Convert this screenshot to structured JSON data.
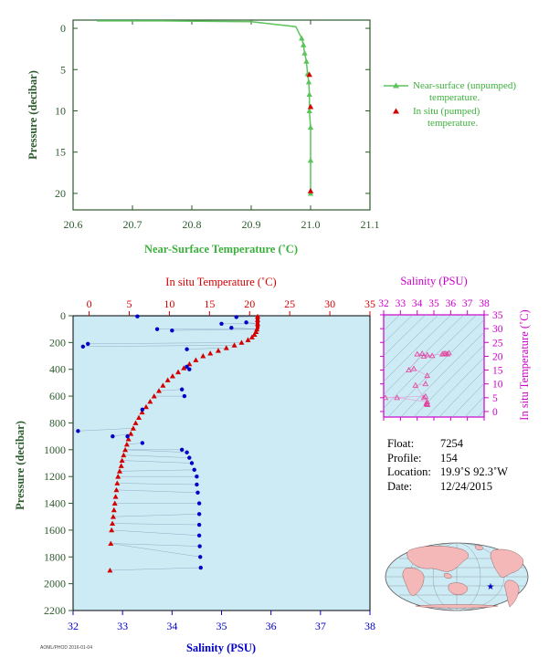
{
  "colors": {
    "surface": "#5bc45b",
    "insitu": "#d40000",
    "salinity": "#0000c8",
    "tsaxis": "#cc00cc",
    "axis_text": "#2d5a2d",
    "panel_bg": "#cdebf5",
    "land": "#f4b8b8",
    "ocean": "#cdebf5"
  },
  "chart_data": [
    {
      "type": "line",
      "xlabel": "Near-Surface Temperature (˚C)",
      "ylabel": "Pressure (decibar)",
      "xlim": [
        20.6,
        21.1
      ],
      "ylim": [
        22,
        -1
      ],
      "xticks": [
        "20.6",
        "20.7",
        "20.8",
        "20.9",
        "21.0",
        "21.1"
      ],
      "yticks": [
        "0",
        "5",
        "10",
        "15",
        "20"
      ],
      "legend_placement": "right",
      "series": [
        {
          "name": "Near-surface (unpumped) temperature.",
          "x": [
            20.64,
            20.75,
            20.9,
            20.975,
            20.98,
            20.985,
            20.988,
            20.99,
            20.993,
            20.995,
            20.997,
            20.998,
            20.998,
            21.0,
            21.0,
            21.0
          ],
          "y": [
            -0.9,
            -0.9,
            -0.8,
            -0.2,
            0.5,
            1.2,
            2.0,
            3.0,
            4.0,
            5.5,
            6.5,
            8.0,
            10.0,
            12.0,
            16.0,
            20.0
          ]
        },
        {
          "name": "In situ (pumped) temperature.",
          "x": [
            20.998,
            21.0,
            21.0
          ],
          "y": [
            5.6,
            9.5,
            19.7
          ]
        }
      ]
    },
    {
      "type": "scatter",
      "ylabel": "Pressure (decibar)",
      "top_axis_label": "In situ Temperature (˚C)",
      "bottom_axis_label": "Salinity (PSU)",
      "temperature_ticks": [
        "0",
        "5",
        "10",
        "15",
        "20",
        "25",
        "30",
        "35"
      ],
      "salinity_ticks": [
        "32",
        "33",
        "34",
        "35",
        "36",
        "37",
        "38"
      ],
      "pressure_ticks": [
        "0",
        "200",
        "400",
        "600",
        "800",
        "1000",
        "1200",
        "1400",
        "1600",
        "1800",
        "2000",
        "2200"
      ],
      "temperature_lim": [
        -2,
        35
      ],
      "salinity_lim": [
        32,
        38
      ],
      "pressure_lim": [
        2200,
        0
      ],
      "series": [
        {
          "name": "In situ Temperature (˚C)",
          "x": [
            21.0,
            21.0,
            21.0,
            20.9,
            20.8,
            20.6,
            20.3,
            19.8,
            19.0,
            18.1,
            17.1,
            16.1,
            15.1,
            14.2,
            13.3,
            12.5,
            11.8,
            11.1,
            10.4,
            9.8,
            9.2,
            8.7,
            8.1,
            7.6,
            7.1,
            6.6,
            6.2,
            5.8,
            5.5,
            5.2,
            4.9,
            4.7,
            4.5,
            4.3,
            4.1,
            4.0,
            3.8,
            3.6,
            3.5,
            3.4,
            3.3,
            3.2,
            3.1,
            3.0,
            2.9,
            2.8,
            2.7,
            2.6
          ],
          "y": [
            5,
            30,
            60,
            100,
            120,
            140,
            160,
            180,
            200,
            220,
            240,
            260,
            280,
            300,
            330,
            360,
            390,
            420,
            450,
            480,
            520,
            560,
            600,
            640,
            680,
            720,
            760,
            800,
            840,
            880,
            920,
            960,
            1000,
            1040,
            1080,
            1120,
            1160,
            1200,
            1250,
            1300,
            1350,
            1400,
            1450,
            1500,
            1550,
            1600,
            1700,
            1900
          ]
        },
        {
          "name": "Salinity (PSU)",
          "x": [
            33.3,
            35.3,
            35.5,
            35.0,
            35.2,
            33.7,
            34.0,
            32.3,
            32.2,
            34.3,
            34.3,
            34.35,
            34.2,
            33.4,
            34.25,
            33.1,
            32.1,
            32.8,
            33.4,
            34.2,
            34.3,
            34.35,
            34.4,
            34.45,
            34.5,
            34.5,
            34.52,
            34.55,
            34.55,
            34.55,
            34.55,
            34.56,
            34.57,
            34.58
          ],
          "y": [
            5,
            10,
            50,
            60,
            90,
            100,
            110,
            210,
            230,
            250,
            380,
            400,
            550,
            700,
            600,
            900,
            860,
            900,
            950,
            1000,
            1020,
            1060,
            1100,
            1150,
            1200,
            1260,
            1320,
            1400,
            1480,
            1560,
            1640,
            1720,
            1800,
            1880
          ]
        }
      ]
    },
    {
      "type": "scatter",
      "top_axis_label": "Salinity (PSU)",
      "right_axis_label": "In situ Temperature (˚C)",
      "xticks": [
        "32",
        "33",
        "34",
        "35",
        "36",
        "37",
        "38"
      ],
      "yticks": [
        "0",
        "5",
        "10",
        "15",
        "20",
        "25",
        "30",
        "35"
      ],
      "xlim": [
        32,
        38
      ],
      "ylim": [
        -2,
        35
      ],
      "series": [
        {
          "name": "T-S",
          "x": [
            35.6,
            35.7,
            35.8,
            35.5,
            35.9,
            34.4,
            34.6,
            34.9,
            34.0,
            34.3,
            33.5,
            33.8,
            34.6,
            34.5,
            33.9,
            34.4,
            34.5,
            32.1,
            32.8,
            34.6,
            34.55,
            34.58,
            34.6,
            34.62
          ],
          "y": [
            21,
            21,
            20.8,
            20.8,
            21.2,
            20,
            20.5,
            20.2,
            20.8,
            21,
            15,
            15.5,
            13,
            10,
            9.5,
            5,
            5.5,
            5,
            5,
            3.5,
            3.0,
            2.8,
            2.6,
            2.5
          ]
        }
      ]
    }
  ],
  "float_info": {
    "float_label": "Float:",
    "float_value": "7254",
    "profile_label": "Profile:",
    "profile_value": "154",
    "location_label": "Location:",
    "location_value": "19.9˚S  92.3˚W",
    "date_label": "Date:",
    "date_value": "12/24/2015"
  },
  "footer_text": "AOML/PHOD 2016-01-04"
}
